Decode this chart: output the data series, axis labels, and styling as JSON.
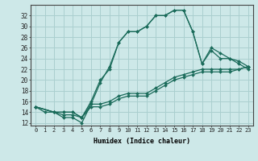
{
  "title": "",
  "xlabel": "Humidex (Indice chaleur)",
  "xlim": [
    -0.5,
    23.5
  ],
  "ylim": [
    11.5,
    34
  ],
  "xticks": [
    0,
    1,
    2,
    3,
    4,
    5,
    6,
    7,
    8,
    9,
    10,
    11,
    12,
    13,
    14,
    15,
    16,
    17,
    18,
    19,
    20,
    21,
    22,
    23
  ],
  "yticks": [
    12,
    14,
    16,
    18,
    20,
    22,
    24,
    26,
    28,
    30,
    32
  ],
  "bg_color": "#cde8e8",
  "grid_color": "#aacfcf",
  "line_color": "#1a6b5a",
  "lines": [
    {
      "x": [
        0,
        1,
        2,
        3,
        4,
        5,
        6,
        7,
        8,
        9,
        10,
        11,
        12,
        13,
        14,
        15,
        16,
        17,
        18,
        19,
        20,
        21,
        22,
        23
      ],
      "y": [
        15,
        14,
        14,
        13,
        13,
        12,
        15.5,
        19.5,
        22.5,
        27,
        29,
        29,
        30,
        32,
        32,
        33,
        33,
        29,
        23,
        25.5,
        24,
        24,
        23.5,
        22.5
      ]
    },
    {
      "x": [
        0,
        2,
        3,
        4,
        5,
        6,
        7,
        8,
        9,
        10,
        11,
        12,
        13,
        14,
        15,
        16,
        17,
        18,
        19,
        20,
        21,
        22,
        23
      ],
      "y": [
        15,
        14,
        13.5,
        13.5,
        13,
        16,
        20,
        22,
        27,
        29,
        29,
        30,
        32,
        32,
        33,
        33,
        29,
        23,
        26,
        25,
        24,
        23,
        22
      ]
    },
    {
      "x": [
        0,
        2,
        3,
        4,
        5,
        6,
        7,
        8,
        9,
        10,
        11,
        12,
        13,
        14,
        15,
        16,
        17,
        18,
        19,
        20,
        21,
        22,
        23
      ],
      "y": [
        15,
        14,
        14,
        14,
        13,
        15.5,
        15.5,
        16,
        17,
        17.5,
        17.5,
        17.5,
        18.5,
        19.5,
        20.5,
        21,
        21.5,
        22,
        22,
        22,
        22,
        22,
        22.5
      ]
    },
    {
      "x": [
        0,
        2,
        3,
        4,
        5,
        6,
        7,
        8,
        9,
        10,
        11,
        12,
        13,
        14,
        15,
        16,
        17,
        18,
        19,
        20,
        21,
        22,
        23
      ],
      "y": [
        15,
        14,
        14,
        14,
        13,
        15,
        15,
        15.5,
        16.5,
        17,
        17,
        17,
        18,
        19,
        20,
        20.5,
        21,
        21.5,
        21.5,
        21.5,
        21.5,
        22,
        22.5
      ]
    }
  ]
}
